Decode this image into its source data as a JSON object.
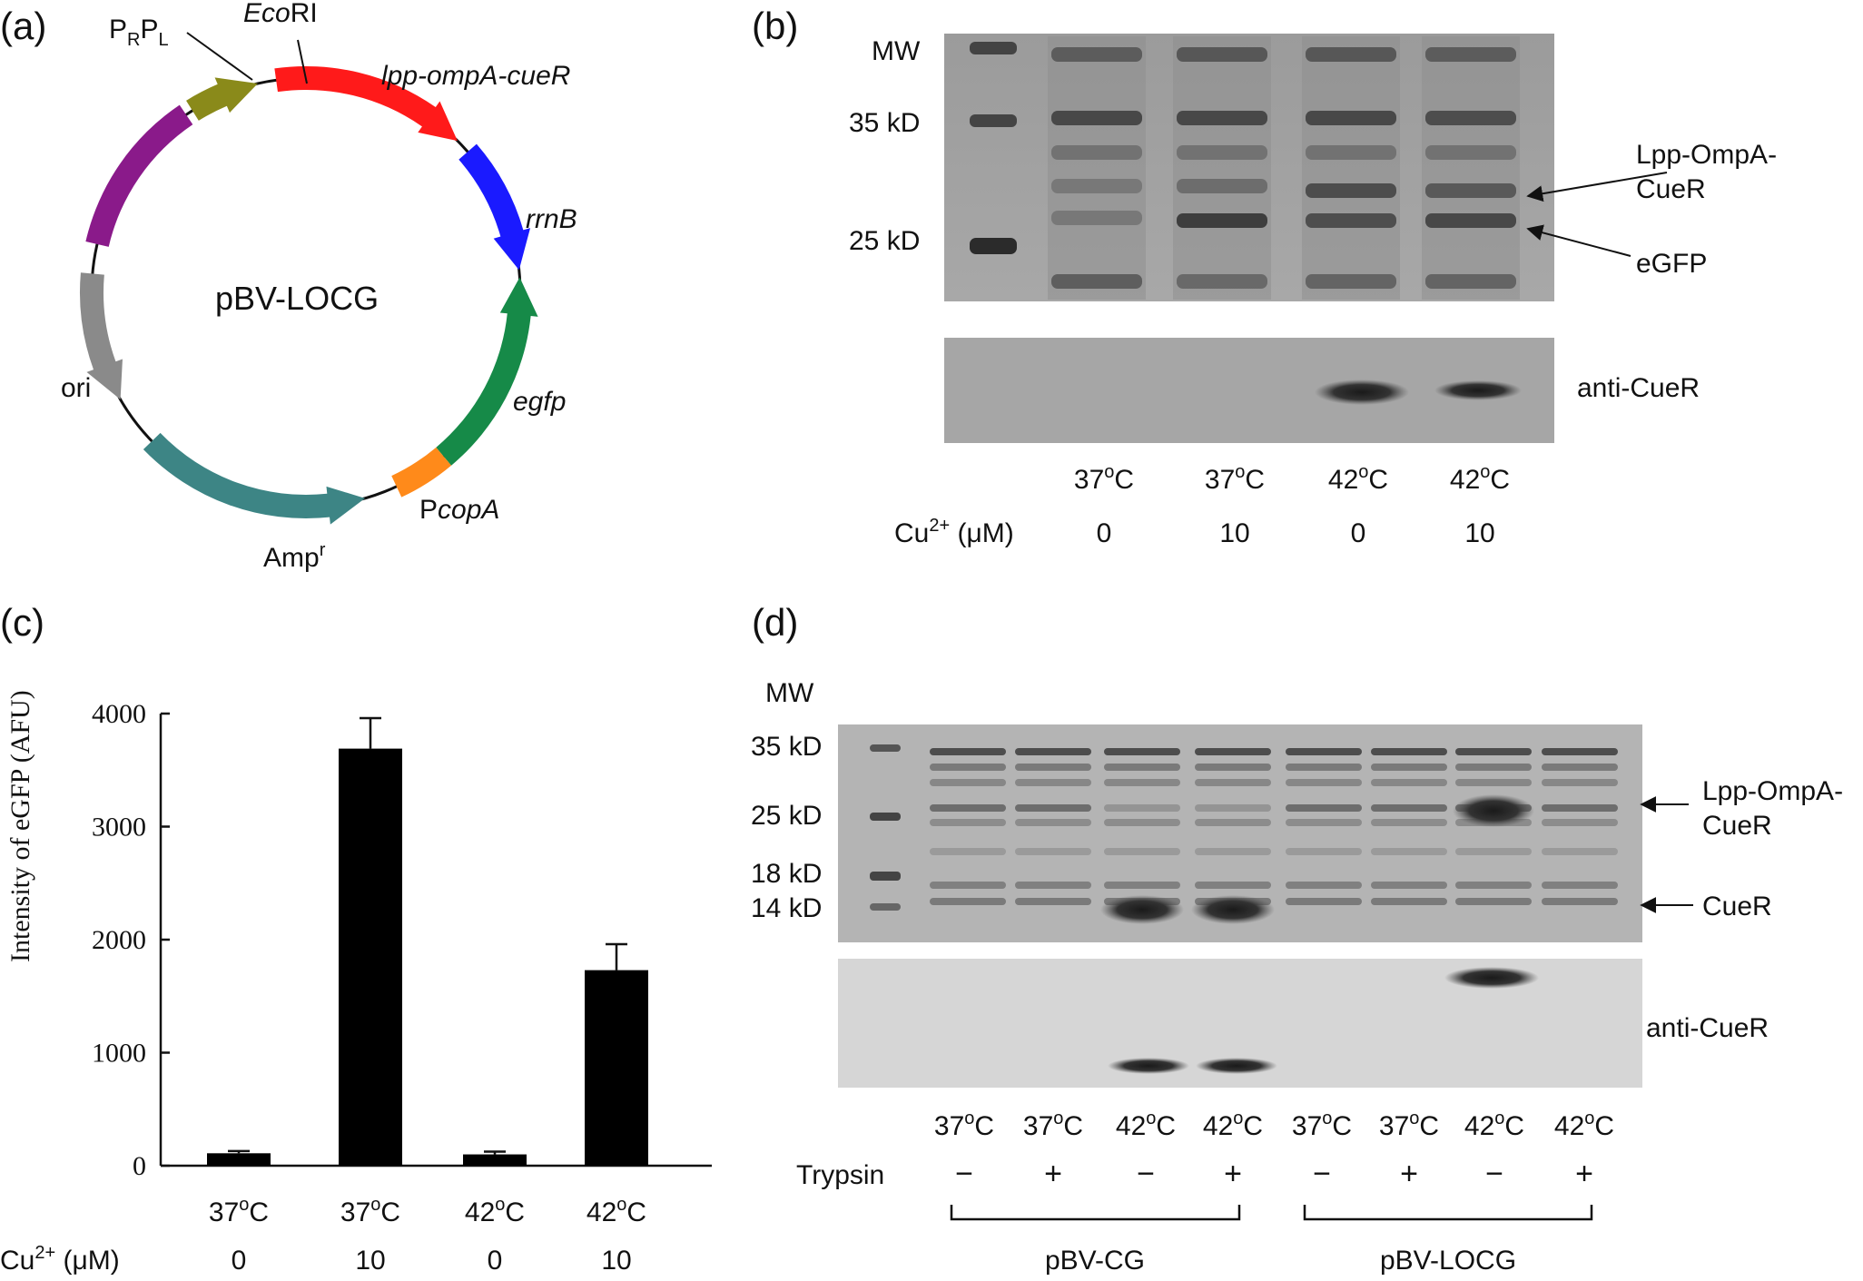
{
  "panel_a": {
    "label": "(a)",
    "plasmid_name": "pBV-LOCG",
    "features": {
      "prpl": "PRPL",
      "ecori": "EcoRI",
      "lpp": "lpp-ompA-cueR",
      "rrnb": "rrnB",
      "egfp": "egfp",
      "pcopa": "PcopA",
      "ampr": "Ampr",
      "ori": "ori"
    },
    "colors": {
      "lpp": "#ff1a1a",
      "rrnb": "#1a1aff",
      "egfp": "#168a48",
      "pcopa": "#ff8a1a",
      "ampr": "#3d8585",
      "ori": "#8a8a8a",
      "purple": "#8a1a8a",
      "prpl": "#8a8a1a"
    }
  },
  "panel_b": {
    "label": "(b)",
    "mw_label": "MW",
    "markers": [
      "35 kD",
      "25 kD"
    ],
    "band_labels": [
      "Lpp-OmpA-",
      "CueR",
      "eGFP"
    ],
    "blot_label": "anti-CueR",
    "temps": [
      "37oC",
      "37oC",
      "42oC",
      "42oC"
    ],
    "cu_label": "Cu2+ (μM)",
    "cu_values": [
      "0",
      "10",
      "0",
      "10"
    ]
  },
  "panel_c": {
    "label": "(c)",
    "chart_data": {
      "type": "bar",
      "categories": [
        "37oC",
        "37oC",
        "42oC",
        "42oC"
      ],
      "values": [
        110,
        3690,
        100,
        1730
      ],
      "errors": [
        20,
        270,
        25,
        230
      ],
      "ylabel": "Intensity of eGFP (AFU)",
      "ylim": [
        0,
        4000
      ],
      "yticks": [
        0,
        1000,
        2000,
        3000,
        4000
      ],
      "bar_color": "#000000",
      "cu_label": "Cu2+ (μM)",
      "cu_values": [
        "0",
        "10",
        "0",
        "10"
      ]
    }
  },
  "panel_d": {
    "label": "(d)",
    "mw_label": "MW",
    "markers": [
      "35 kD",
      "25 kD",
      "18 kD",
      "14 kD"
    ],
    "band_labels": [
      "Lpp-OmpA-",
      "CueR",
      "CueR"
    ],
    "blot_label": "anti-CueR",
    "temps": [
      "37oC",
      "37oC",
      "42oC",
      "42oC",
      "37oC",
      "37oC",
      "42oC",
      "42oC"
    ],
    "trypsin_label": "Trypsin",
    "trypsin": [
      "−",
      "+",
      "−",
      "+",
      "−",
      "+",
      "−",
      "+"
    ],
    "groups": [
      "pBV-CG",
      "pBV-LOCG"
    ]
  }
}
